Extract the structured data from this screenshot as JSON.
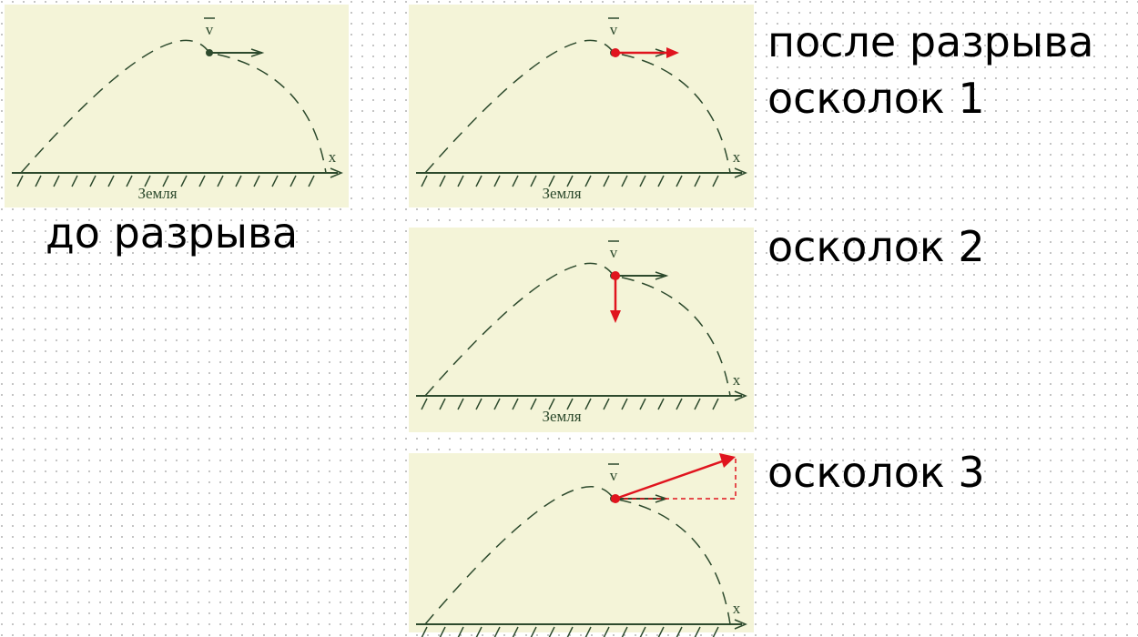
{
  "caption_before": "до разрыва",
  "caption_after": "после разрыва",
  "fragments": [
    "осколок 1",
    "осколок 2",
    "осколок 3"
  ],
  "panels": [
    {
      "velocity": "v",
      "axis": "x",
      "ground": "Земля"
    },
    {
      "velocity": "v",
      "axis": "x",
      "ground": "Земля"
    },
    {
      "velocity": "v",
      "axis": "x",
      "ground": "Земля"
    },
    {
      "velocity": "v",
      "axis": "x"
    }
  ]
}
